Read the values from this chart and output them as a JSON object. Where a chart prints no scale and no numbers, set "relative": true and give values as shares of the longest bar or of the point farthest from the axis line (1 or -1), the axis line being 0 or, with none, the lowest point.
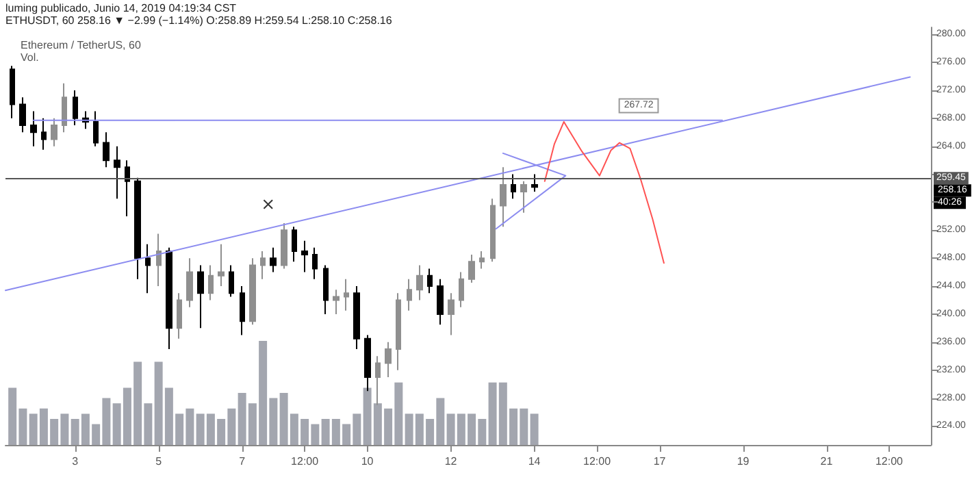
{
  "chart_data": [
    {
      "type": "candlestick",
      "title": "Ethereum / TetherUS, 60",
      "annotations": [
        "luming publicado, Junio 14, 2019 04:19:34 CST",
        "ETHUSDT, 60 258.16 ▼ −2.99 (−1.14%) O:258.89 H:259.54 L:258.10 C:258.16",
        {
          "text": "267.72",
          "x": "2019-06-16T12:00",
          "y": 269.8
        },
        "258.16",
        "40:26"
      ],
      "xlim": [
        "2019-06-01T08:00",
        "2019-06-23T12:00"
      ],
      "xticks": [
        {
          "value": "2019-06-03",
          "label": "3"
        },
        {
          "value": "2019-06-05",
          "label": "5"
        },
        {
          "value": "2019-06-07",
          "label": "7"
        },
        {
          "value": "2019-06-08T12:00",
          "label": "12:00"
        },
        {
          "value": "2019-06-10",
          "label": "10"
        },
        {
          "value": "2019-06-12",
          "label": "12"
        },
        {
          "value": "2019-06-14",
          "label": "14"
        },
        {
          "value": "2019-06-15T12:00",
          "label": "12:00"
        },
        {
          "value": "2019-06-17",
          "label": "17"
        },
        {
          "value": "2019-06-19",
          "label": "19"
        },
        {
          "value": "2019-06-21",
          "label": "21"
        },
        {
          "value": "2019-06-22T12:00",
          "label": "12:00"
        }
      ],
      "ylim": [
        221.3,
        281
      ],
      "yticks": [
        {
          "value": 224,
          "label": "224.00"
        },
        {
          "value": 228,
          "label": "228.00"
        },
        {
          "value": 232,
          "label": "232.00"
        },
        {
          "value": 236,
          "label": "236.00"
        },
        {
          "value": 240,
          "label": "240.00"
        },
        {
          "value": 244,
          "label": "244.00"
        },
        {
          "value": 248,
          "label": "248.00"
        },
        {
          "value": 252,
          "label": "252.00"
        },
        {
          "value": 256,
          "label": null
        },
        {
          "value": 260,
          "label": null
        },
        {
          "value": 264,
          "label": "264.00"
        },
        {
          "value": 268,
          "label": "268.00"
        },
        {
          "value": 272,
          "label": "272.00"
        },
        {
          "value": 276,
          "label": "276.00"
        },
        {
          "value": 280,
          "label": "280.00"
        }
      ],
      "grid": false,
      "line_style": "solid",
      "ref_lines": [
        {
          "axis": "y",
          "value": 259.45,
          "label": "259.45",
          "color": "#555555"
        }
      ],
      "series": [
        {
          "type": "candlestick",
          "colors": [
            "#000000",
            "#000000",
            "#000000",
            "#000000",
            "#8f8f8f",
            "#8f8f8f",
            "#000000",
            "#000000",
            "#000000",
            "#000000",
            "#000000",
            "#000000",
            "#000000",
            "#000000",
            "#8f8f8f",
            "#000000",
            "#8f8f8f",
            "#8f8f8f",
            "#000000",
            "#8f8f8f",
            "#8f8f8f",
            "#000000",
            "#000000",
            "#8f8f8f",
            "#8f8f8f",
            "#000000",
            "#8f8f8f",
            "#000000",
            "#000000",
            "#000000",
            "#000000",
            "#8f8f8f",
            "#8f8f8f",
            "#000000",
            "#000000",
            "#8f8f8f",
            "#8f8f8f",
            "#8f8f8f",
            "#8f8f8f",
            "#8f8f8f",
            "#000000",
            "#000000",
            "#8f8f8f",
            "#8f8f8f",
            "#8f8f8f",
            "#8f8f8f",
            "#8f8f8f",
            "#8f8f8f",
            "#000000",
            "#8f8f8f",
            "#000000"
          ],
          "x": [
            "2019-06-01T12:00",
            "2019-06-01T18:00",
            "2019-06-02T00:00",
            "2019-06-02T06:00",
            "2019-06-02T12:00",
            "2019-06-02T18:00",
            "2019-06-03T00:00",
            "2019-06-03T06:00",
            "2019-06-03T12:00",
            "2019-06-03T18:00",
            "2019-06-04T00:00",
            "2019-06-04T06:00",
            "2019-06-04T12:00",
            "2019-06-04T18:00",
            "2019-06-05T00:00",
            "2019-06-05T06:00",
            "2019-06-05T12:00",
            "2019-06-05T18:00",
            "2019-06-06T00:00",
            "2019-06-06T06:00",
            "2019-06-06T12:00",
            "2019-06-06T18:00",
            "2019-06-07T00:00",
            "2019-06-07T06:00",
            "2019-06-07T12:00",
            "2019-06-07T18:00",
            "2019-06-08T00:00",
            "2019-06-08T06:00",
            "2019-06-08T12:00",
            "2019-06-08T18:00",
            "2019-06-09T00:00",
            "2019-06-09T06:00",
            "2019-06-09T12:00",
            "2019-06-09T18:00",
            "2019-06-10T00:00",
            "2019-06-10T06:00",
            "2019-06-10T12:00",
            "2019-06-10T18:00",
            "2019-06-11T00:00",
            "2019-06-11T06:00",
            "2019-06-11T12:00",
            "2019-06-11T18:00",
            "2019-06-12T00:00",
            "2019-06-12T06:00",
            "2019-06-12T12:00",
            "2019-06-12T18:00",
            "2019-06-13T00:00",
            "2019-06-13T06:00",
            "2019-06-13T12:00",
            "2019-06-13T18:00",
            "2019-06-14T00:00"
          ],
          "ohlc": [
            [
              275,
              275.5,
              268,
              270
            ],
            [
              270,
              271,
              266,
              267
            ],
            [
              267,
              269,
              264,
              266
            ],
            [
              266,
              268,
              263.5,
              265
            ],
            [
              265,
              268,
              264,
              267
            ],
            [
              267,
              273,
              266,
              271
            ],
            [
              271,
              272,
              267,
              268
            ],
            [
              268,
              269,
              266.5,
              267.5
            ],
            [
              267.5,
              269,
              264,
              264.5
            ],
            [
              264.5,
              266,
              261,
              262
            ],
            [
              262,
              264,
              256.5,
              261
            ],
            [
              261,
              262,
              254,
              259
            ],
            [
              259,
              259.5,
              245,
              248
            ],
            [
              248,
              250,
              243,
              247
            ],
            [
              247,
              251.5,
              244,
              249
            ],
            [
              249,
              249.5,
              235,
              238
            ],
            [
              238,
              243,
              236.5,
              242
            ],
            [
              242,
              248,
              241,
              246
            ],
            [
              246,
              247,
              238,
              243
            ],
            [
              243,
              247,
              242,
              245.5
            ],
            [
              245.5,
              250,
              244,
              246
            ],
            [
              246,
              247,
              242.5,
              243
            ],
            [
              243,
              244,
              237,
              239
            ],
            [
              239,
              248,
              238.5,
              247
            ],
            [
              247,
              249,
              245,
              248
            ],
            [
              248,
              249.5,
              246,
              247
            ],
            [
              247,
              253,
              246.5,
              252
            ],
            [
              252,
              252.5,
              247.5,
              249
            ],
            [
              249,
              250.5,
              246,
              248.5
            ],
            [
              248.5,
              249.5,
              245,
              246.5
            ],
            [
              246.5,
              247,
              240,
              242
            ],
            [
              242,
              243.5,
              240,
              242.5
            ],
            [
              242.5,
              245,
              240.5,
              243
            ],
            [
              243,
              244,
              235,
              236.5
            ],
            [
              236.5,
              237,
              229,
              231
            ],
            [
              231,
              234,
              227,
              233
            ],
            [
              233,
              236,
              231,
              235
            ],
            [
              235,
              243,
              232,
              242
            ],
            [
              242,
              245,
              240.5,
              243.5
            ],
            [
              243.5,
              247,
              242,
              245.5
            ],
            [
              245.5,
              246.5,
              243,
              244
            ],
            [
              244,
              245,
              238.5,
              240
            ],
            [
              240,
              243,
              237,
              242
            ],
            [
              242,
              246,
              241,
              245
            ],
            [
              245,
              248.5,
              244.5,
              247.5
            ],
            [
              247.5,
              249,
              246.5,
              248
            ],
            [
              248,
              256.5,
              247.5,
              255.5
            ],
            [
              255.5,
              261,
              252.5,
              258.5
            ],
            [
              258.5,
              260,
              256.5,
              257.5
            ],
            [
              257.5,
              259,
              254.5,
              258.5
            ],
            [
              258.5,
              260,
              257.5,
              258.16
            ]
          ]
        },
        {
          "type": "line",
          "color": "#8c8cf0",
          "marker": "none",
          "x": [
            "2019-06-02T00:00",
            "2019-06-18T12:00"
          ],
          "values": [
            267.72,
            267.72
          ]
        },
        {
          "type": "line",
          "color": "#8c8cf0",
          "marker": "none",
          "x": [
            "2019-06-01T08:00",
            "2019-06-23T00:00"
          ],
          "values": [
            243.4,
            273.9
          ]
        },
        {
          "type": "line",
          "color": "#8c8cf0",
          "marker": "none",
          "x": [
            "2019-06-13T06:00",
            "2019-06-14T18:00",
            "2019-06-13T02:00"
          ],
          "values": [
            263,
            259.8,
            252.2
          ]
        },
        {
          "type": "line",
          "color": "#ff5252",
          "marker": "none",
          "x": [
            "2019-06-14T06:00",
            "2019-06-14T11:30",
            "2019-06-14T17:00",
            "2019-06-15T03:00",
            "2019-06-15T13:30",
            "2019-06-15T20:00",
            "2019-06-16T01:00",
            "2019-06-16T07:00",
            "2019-06-16T13:00",
            "2019-06-16T20:00",
            "2019-06-17T02:30"
          ],
          "values": [
            259,
            264.3,
            267.5,
            263.4,
            259.8,
            263.4,
            264.5,
            263.7,
            259.4,
            253.6,
            247.3
          ]
        },
        {
          "type": "scatter",
          "color": "#000000",
          "marker": "cross",
          "x": [
            "2019-06-07T15:00"
          ],
          "values": [
            255.7
          ]
        }
      ]
    },
    {
      "type": "bar",
      "title": "Vol.",
      "relative": true,
      "color": "#a3a6af",
      "xlim": [
        "2019-06-01T08:00",
        "2019-06-23T12:00"
      ],
      "x": [
        "2019-06-01T12:00",
        "2019-06-01T18:00",
        "2019-06-02T00:00",
        "2019-06-02T06:00",
        "2019-06-02T12:00",
        "2019-06-02T18:00",
        "2019-06-03T00:00",
        "2019-06-03T06:00",
        "2019-06-03T12:00",
        "2019-06-03T18:00",
        "2019-06-04T00:00",
        "2019-06-04T06:00",
        "2019-06-04T12:00",
        "2019-06-04T18:00",
        "2019-06-05T00:00",
        "2019-06-05T06:00",
        "2019-06-05T12:00",
        "2019-06-05T18:00",
        "2019-06-06T00:00",
        "2019-06-06T06:00",
        "2019-06-06T12:00",
        "2019-06-06T18:00",
        "2019-06-07T00:00",
        "2019-06-07T06:00",
        "2019-06-07T12:00",
        "2019-06-07T18:00",
        "2019-06-08T00:00",
        "2019-06-08T06:00",
        "2019-06-08T12:00",
        "2019-06-08T18:00",
        "2019-06-09T00:00",
        "2019-06-09T06:00",
        "2019-06-09T12:00",
        "2019-06-09T18:00",
        "2019-06-10T00:00",
        "2019-06-10T06:00",
        "2019-06-10T12:00",
        "2019-06-10T18:00",
        "2019-06-11T00:00",
        "2019-06-11T06:00",
        "2019-06-11T12:00",
        "2019-06-11T18:00",
        "2019-06-12T00:00",
        "2019-06-12T06:00",
        "2019-06-12T12:00",
        "2019-06-12T18:00",
        "2019-06-13T00:00",
        "2019-06-13T06:00",
        "2019-06-13T12:00",
        "2019-06-13T18:00",
        "2019-06-14T00:00"
      ],
      "values": [
        0.55,
        0.35,
        0.3,
        0.35,
        0.25,
        0.3,
        0.25,
        0.3,
        0.2,
        0.45,
        0.4,
        0.55,
        0.8,
        0.4,
        0.8,
        0.55,
        0.3,
        0.35,
        0.3,
        0.3,
        0.25,
        0.35,
        0.5,
        0.4,
        1,
        0.45,
        0.5,
        0.3,
        0.25,
        0.2,
        0.25,
        0.25,
        0.2,
        0.3,
        0.55,
        0.4,
        0.35,
        0.6,
        0.3,
        0.3,
        0.25,
        0.45,
        0.3,
        0.3,
        0.3,
        0.25,
        0.6,
        0.6,
        0.35,
        0.35,
        0.3
      ]
    }
  ]
}
